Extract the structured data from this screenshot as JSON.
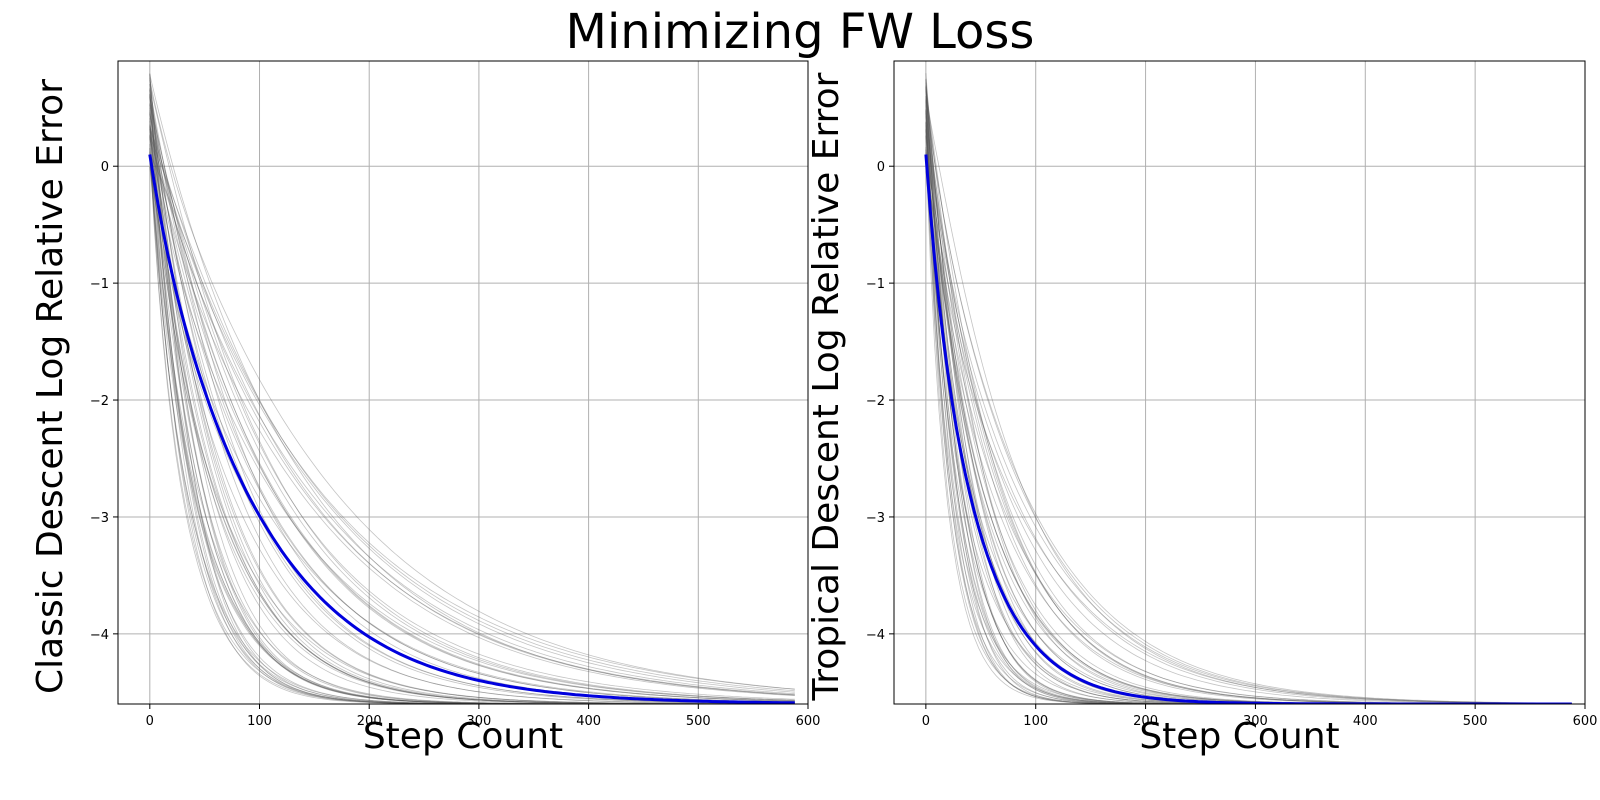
{
  "figure": {
    "title": "Minimizing FW Loss"
  },
  "chart_data": [
    {
      "type": "line",
      "xlabel": "Step Count",
      "ylabel": "Classic Descent Log Relative Error",
      "xlim": [
        -29,
        600
      ],
      "ylim": [
        -4.6,
        0.9
      ],
      "xticks": [
        0,
        100,
        200,
        300,
        400,
        500,
        600
      ],
      "yticks": [
        0,
        -1,
        -2,
        -3,
        -4
      ],
      "grid": true,
      "x_range": [
        0,
        590
      ],
      "floor": -4.6,
      "mean": {
        "color": "#0000dd",
        "start": 0.1,
        "rate": 0.0105
      },
      "runs": {
        "count": 60,
        "color": "#555555",
        "start_range": [
          -0.05,
          0.8
        ],
        "rate_range": [
          0.006,
          0.03
        ]
      }
    },
    {
      "type": "line",
      "xlabel": "Step Count",
      "ylabel": "Tropical Descent Log Relative Error",
      "xlim": [
        -29,
        600
      ],
      "ylim": [
        -4.6,
        0.9
      ],
      "xticks": [
        0,
        100,
        200,
        300,
        400,
        500,
        600
      ],
      "yticks": [
        0,
        -1,
        -2,
        -3,
        -4
      ],
      "grid": true,
      "x_range": [
        0,
        590
      ],
      "floor": -4.6,
      "mean": {
        "color": "#0000dd",
        "start": 0.1,
        "rate": 0.022
      },
      "runs": {
        "count": 55,
        "color": "#555555",
        "start_range": [
          -0.05,
          0.8
        ],
        "rate_range": [
          0.011,
          0.045
        ]
      }
    }
  ]
}
